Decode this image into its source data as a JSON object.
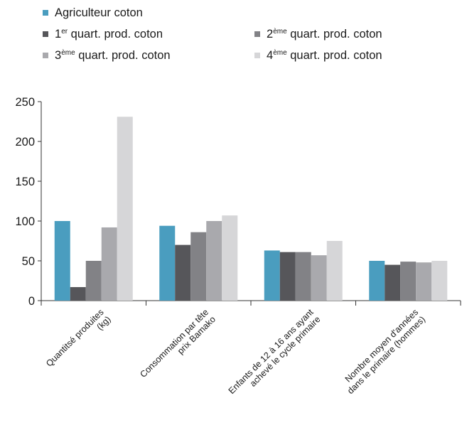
{
  "chart_data": {
    "type": "bar",
    "categories": [
      [
        "Quantitsé produites",
        "(kg)"
      ],
      [
        "Consommation par tête",
        "prix Bamako"
      ],
      [
        "Enfants de 12 à 16 ans ayant",
        "achevé le cycle primaire"
      ],
      [
        "Nombre moyen d'années",
        "dans le primaire (hommes)"
      ]
    ],
    "series": [
      {
        "name": "Agriculteur coton",
        "name_base": "Agriculteur coton",
        "name_sup": "",
        "name_rest": "",
        "color": "#4a9dbf",
        "values": [
          100,
          94,
          63,
          50
        ]
      },
      {
        "name": "1er quart. prod. coton",
        "name_base": "1",
        "name_sup": "er",
        "name_rest": " quart. prod. coton",
        "color": "#56565a",
        "values": [
          17,
          70,
          61,
          45
        ]
      },
      {
        "name": "2ème quart. prod. coton",
        "name_base": "2",
        "name_sup": "ème",
        "name_rest": " quart. prod. coton",
        "color": "#828286",
        "values": [
          50,
          86,
          61,
          49
        ]
      },
      {
        "name": "3ème quart. prod. coton",
        "name_base": "3",
        "name_sup": "ème",
        "name_rest": " quart. prod. coton",
        "color": "#a9a9ad",
        "values": [
          92,
          100,
          57,
          48
        ]
      },
      {
        "name": "4ème quart. prod. coton",
        "name_base": "4",
        "name_sup": "ème",
        "name_rest": " quart. prod. coton",
        "color": "#d6d6d8",
        "values": [
          231,
          107,
          75,
          50
        ]
      }
    ],
    "y_ticks": [
      0,
      50,
      100,
      150,
      200,
      250
    ],
    "ylim": [
      0,
      250
    ],
    "grid": false,
    "legend_position": "top"
  }
}
